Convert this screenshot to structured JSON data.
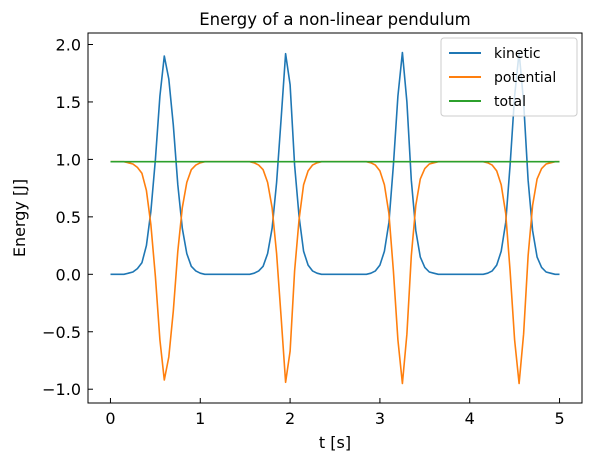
{
  "chart_data": {
    "type": "line",
    "title": "Energy of a non-linear pendulum",
    "xlabel": "t [s]",
    "ylabel": "Energy [J]",
    "xlim": [
      -0.25,
      5.25
    ],
    "ylim": [
      -1.12,
      2.1
    ],
    "x_ticks": [
      0,
      1,
      2,
      3,
      4,
      5
    ],
    "x_tick_labels": [
      "0",
      "1",
      "2",
      "3",
      "4",
      "5"
    ],
    "y_ticks": [
      -1.0,
      -0.5,
      0.0,
      0.5,
      1.0,
      1.5,
      2.0
    ],
    "y_tick_labels": [
      "−1.0",
      "−0.5",
      "0.0",
      "0.5",
      "1.0",
      "1.5",
      "2.0"
    ],
    "grid": false,
    "legend_position": "top-right",
    "x": [
      0.0,
      0.05,
      0.1,
      0.15,
      0.2,
      0.25,
      0.3,
      0.35,
      0.4,
      0.45,
      0.5,
      0.55,
      0.6,
      0.65,
      0.7,
      0.75,
      0.8,
      0.85,
      0.9,
      0.95,
      1.0,
      1.05,
      1.1,
      1.15,
      1.2,
      1.25,
      1.3,
      1.35,
      1.4,
      1.45,
      1.5,
      1.55,
      1.6,
      1.65,
      1.7,
      1.75,
      1.8,
      1.85,
      1.9,
      1.95,
      2.0,
      2.05,
      2.1,
      2.15,
      2.2,
      2.25,
      2.3,
      2.35,
      2.4,
      2.45,
      2.5,
      2.55,
      2.6,
      2.65,
      2.7,
      2.75,
      2.8,
      2.85,
      2.9,
      2.95,
      3.0,
      3.05,
      3.1,
      3.15,
      3.2,
      3.25,
      3.3,
      3.35,
      3.4,
      3.45,
      3.5,
      3.55,
      3.6,
      3.65,
      3.7,
      3.75,
      3.8,
      3.85,
      3.9,
      3.95,
      4.0,
      4.05,
      4.1,
      4.15,
      4.2,
      4.25,
      4.3,
      4.35,
      4.4,
      4.45,
      4.5,
      4.55,
      4.6,
      4.65,
      4.7,
      4.75,
      4.8,
      4.85,
      4.9,
      4.95,
      5.0
    ],
    "series": [
      {
        "name": "kinetic",
        "color": "#1f77b4",
        "values": [
          0.0,
          0.0,
          0.0,
          0.0,
          0.01,
          0.02,
          0.05,
          0.1,
          0.25,
          0.55,
          1.0,
          1.55,
          1.9,
          1.7,
          1.3,
          0.78,
          0.4,
          0.18,
          0.07,
          0.03,
          0.01,
          0.0,
          0.0,
          0.0,
          0.0,
          0.0,
          0.0,
          0.0,
          0.0,
          0.0,
          0.0,
          0.0,
          0.01,
          0.03,
          0.07,
          0.18,
          0.4,
          0.8,
          1.35,
          1.92,
          1.65,
          0.95,
          0.5,
          0.2,
          0.08,
          0.03,
          0.01,
          0.0,
          0.0,
          0.0,
          0.0,
          0.0,
          0.0,
          0.0,
          0.0,
          0.0,
          0.0,
          0.0,
          0.01,
          0.03,
          0.08,
          0.2,
          0.45,
          0.95,
          1.55,
          1.93,
          1.5,
          0.82,
          0.38,
          0.15,
          0.06,
          0.02,
          0.01,
          0.0,
          0.0,
          0.0,
          0.0,
          0.0,
          0.0,
          0.0,
          0.0,
          0.0,
          0.0,
          0.0,
          0.01,
          0.03,
          0.08,
          0.2,
          0.45,
          0.95,
          1.55,
          1.93,
          1.5,
          0.82,
          0.38,
          0.15,
          0.06,
          0.02,
          0.01,
          0.0,
          0.0
        ]
      },
      {
        "name": "potential",
        "color": "#ff7f0e",
        "values": [
          0.98,
          0.98,
          0.98,
          0.98,
          0.97,
          0.96,
          0.93,
          0.88,
          0.73,
          0.43,
          -0.02,
          -0.57,
          -0.92,
          -0.72,
          -0.32,
          0.2,
          0.58,
          0.8,
          0.91,
          0.95,
          0.97,
          0.98,
          0.98,
          0.98,
          0.98,
          0.98,
          0.98,
          0.98,
          0.98,
          0.98,
          0.98,
          0.98,
          0.97,
          0.95,
          0.91,
          0.8,
          0.58,
          0.18,
          -0.37,
          -0.94,
          -0.67,
          0.03,
          0.48,
          0.78,
          0.9,
          0.95,
          0.97,
          0.98,
          0.98,
          0.98,
          0.98,
          0.98,
          0.98,
          0.98,
          0.98,
          0.98,
          0.98,
          0.98,
          0.97,
          0.95,
          0.9,
          0.78,
          0.53,
          0.03,
          -0.57,
          -0.95,
          -0.52,
          0.16,
          0.6,
          0.83,
          0.92,
          0.96,
          0.97,
          0.98,
          0.98,
          0.98,
          0.98,
          0.98,
          0.98,
          0.98,
          0.98,
          0.98,
          0.98,
          0.98,
          0.97,
          0.95,
          0.9,
          0.78,
          0.53,
          0.03,
          -0.57,
          -0.95,
          -0.52,
          0.16,
          0.6,
          0.83,
          0.92,
          0.96,
          0.97,
          0.98,
          0.98
        ]
      },
      {
        "name": "total",
        "color": "#2ca02c",
        "values": [
          0.98,
          0.98,
          0.98,
          0.98,
          0.98,
          0.98,
          0.98,
          0.98,
          0.98,
          0.98,
          0.98,
          0.98,
          0.98,
          0.98,
          0.98,
          0.98,
          0.98,
          0.98,
          0.98,
          0.98,
          0.98,
          0.98,
          0.98,
          0.98,
          0.98,
          0.98,
          0.98,
          0.98,
          0.98,
          0.98,
          0.98,
          0.98,
          0.98,
          0.98,
          0.98,
          0.98,
          0.98,
          0.98,
          0.98,
          0.98,
          0.98,
          0.98,
          0.98,
          0.98,
          0.98,
          0.98,
          0.98,
          0.98,
          0.98,
          0.98,
          0.98,
          0.98,
          0.98,
          0.98,
          0.98,
          0.98,
          0.98,
          0.98,
          0.98,
          0.98,
          0.98,
          0.98,
          0.98,
          0.98,
          0.98,
          0.98,
          0.98,
          0.98,
          0.98,
          0.98,
          0.98,
          0.98,
          0.98,
          0.98,
          0.98,
          0.98,
          0.98,
          0.98,
          0.98,
          0.98,
          0.98,
          0.98,
          0.98,
          0.98,
          0.98,
          0.98,
          0.98,
          0.98,
          0.98,
          0.98,
          0.98,
          0.98,
          0.98,
          0.98,
          0.98,
          0.98,
          0.98,
          0.98,
          0.98,
          0.98,
          0.98
        ]
      }
    ]
  }
}
